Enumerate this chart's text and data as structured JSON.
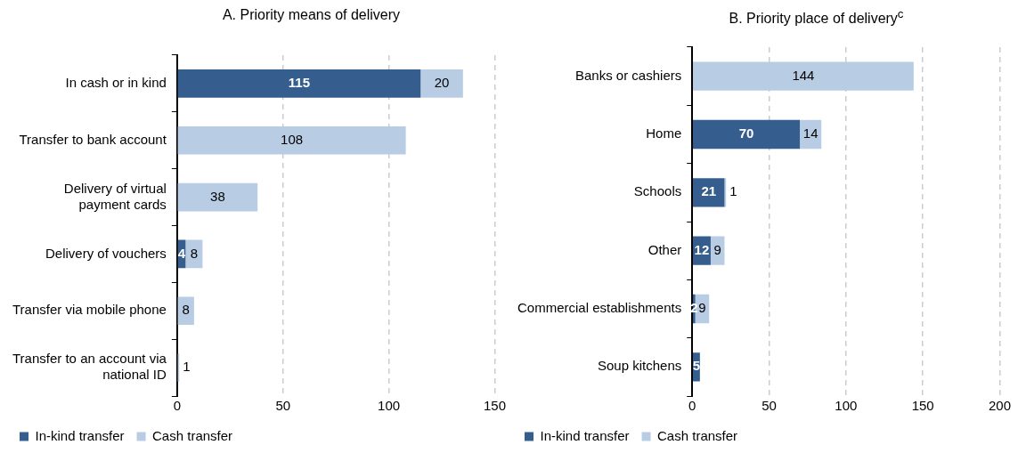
{
  "chart_data": [
    {
      "type": "bar",
      "title": "A. Priority means of delivery",
      "orientation": "horizontal",
      "stacked": true,
      "categories": [
        "In cash or in kind",
        "Transfer to bank account",
        "Delivery of virtual payment cards",
        "Delivery of vouchers",
        "Transfer via mobile phone",
        "Transfer to an account via national ID"
      ],
      "series": [
        {
          "name": "In-kind transfer",
          "color": "#355e8e",
          "values": [
            115,
            null,
            null,
            4,
            null,
            null
          ]
        },
        {
          "name": "Cash transfer",
          "color": "#b8cce4",
          "values": [
            20,
            108,
            38,
            8,
            8,
            1
          ]
        }
      ],
      "xlim": [
        0,
        150
      ],
      "xticks": [
        0,
        50,
        100,
        150
      ],
      "grid": "x",
      "legend": "bottom",
      "data_labels": true
    },
    {
      "type": "bar",
      "title": "B. Priority place of delivery$^{c}$",
      "orientation": "horizontal",
      "stacked": true,
      "categories": [
        "Banks or cashiers",
        "Home",
        "Schools",
        "Other",
        "Commercial establishments",
        "Soup kitchens"
      ],
      "series": [
        {
          "name": "In-kind transfer",
          "color": "#355e8e",
          "values": [
            null,
            70,
            21,
            12,
            2,
            5
          ]
        },
        {
          "name": "Cash transfer",
          "color": "#b8cce4",
          "values": [
            144,
            14,
            1,
            9,
            9,
            null
          ]
        }
      ],
      "xlim": [
        0,
        200
      ],
      "xticks": [
        0,
        50,
        100,
        150,
        200
      ],
      "grid": "x",
      "legend": "bottom",
      "data_labels": true
    }
  ]
}
